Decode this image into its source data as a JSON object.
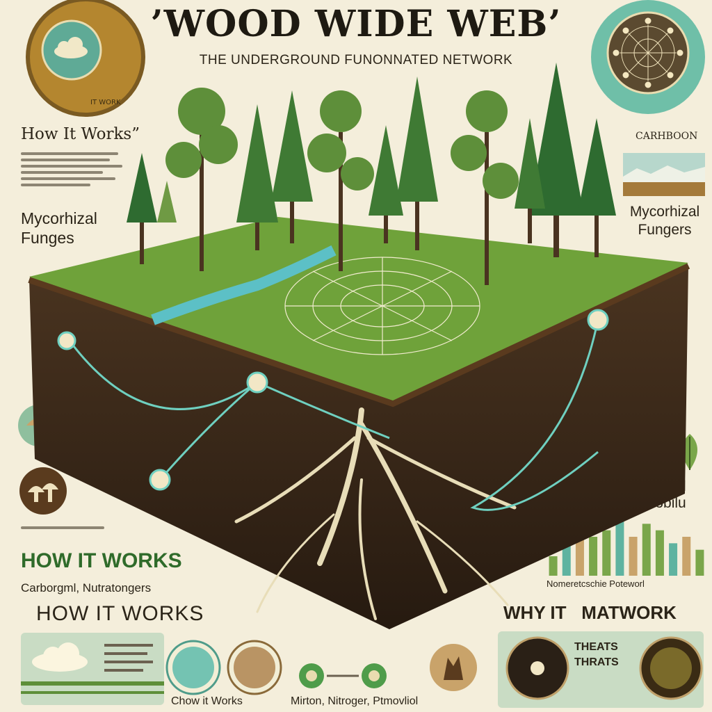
{
  "header": {
    "title": "’WOOD WIDE WEB’",
    "subtitle": "THE UNDERGROUND FUNONNATED NETWORK"
  },
  "left_panel": {
    "how_it_works_top": "How It Works”",
    "mycorrhizal_label": "Mycorhizal\nFunges",
    "how_it_works_green": "HOW IT WORKS",
    "carbon_caption": "Carborgml, Nutratongers",
    "how_it_works_bottom": "HOW IT WORKS"
  },
  "right_panel": {
    "carbon_label": "CARHBOON",
    "fungers_label": "Mycorhizal\nFungers",
    "phero_label": "Mycorizal\nPherobilu",
    "bar_caption": "Nomeretcschie Poteworl",
    "why_title": "WHY IT   MATWORK"
  },
  "bottom_row": {
    "chow_caption": "Chow it Works",
    "nutrients_caption": "Mirton, Nitroger, Ptmovliol",
    "threats_line1": "THEATS",
    "threats_line2": "THRATS"
  },
  "chart_data": {
    "type": "bar",
    "values": [
      3,
      5,
      8,
      6,
      7,
      9,
      6,
      8,
      7,
      5,
      6,
      4
    ]
  },
  "colors": {
    "background": "#f4eedb",
    "grass": "#6fa23a",
    "soil": "#3b2b1c",
    "root": "#e8ddb8",
    "mycelium": "#6fd0c0",
    "accent_teal": "#5fb3a0"
  }
}
